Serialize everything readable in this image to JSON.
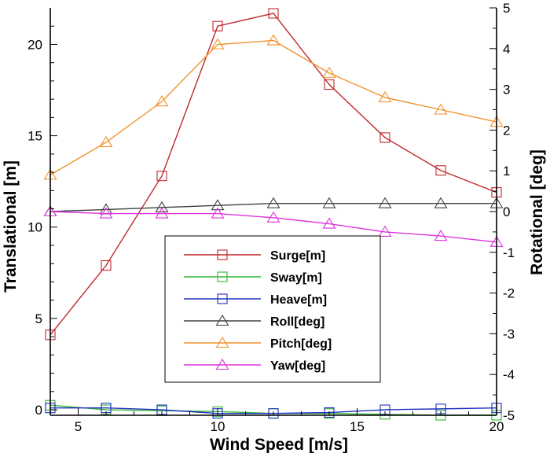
{
  "chart_data": {
    "type": "line",
    "xlabel": "Wind Speed [m/s]",
    "ylabel_left": "Translational [m]",
    "ylabel_right": "Rotational [deg]",
    "xlim": [
      4,
      20
    ],
    "ylim_left": [
      -0.3,
      22
    ],
    "ylim_right": [
      -5,
      5
    ],
    "x_ticks": [
      5,
      10,
      15,
      20
    ],
    "y_left_ticks": [
      0,
      5,
      10,
      15,
      20
    ],
    "y_right_ticks": [
      -5,
      -4,
      -3,
      -2,
      -1,
      0,
      1,
      2,
      3,
      4,
      5
    ],
    "x": [
      4,
      6,
      8,
      10,
      12,
      14,
      16,
      18,
      20
    ],
    "legend_position": "center",
    "series": [
      {
        "name": "Surge[m]",
        "axis": "left",
        "marker": "square",
        "color": "#c0282d",
        "values": [
          4.1,
          7.9,
          12.8,
          21.0,
          21.7,
          17.8,
          14.9,
          13.1,
          11.9
        ]
      },
      {
        "name": "Sway[m]",
        "axis": "left",
        "marker": "square",
        "color": "#2fb52f",
        "values": [
          0.25,
          0.0,
          -0.05,
          -0.1,
          -0.2,
          -0.2,
          -0.25,
          -0.3,
          -0.3
        ]
      },
      {
        "name": "Heave[m]",
        "axis": "left",
        "marker": "square",
        "color": "#2030c0",
        "values": [
          0.1,
          0.1,
          0.0,
          -0.2,
          -0.2,
          -0.15,
          0.0,
          0.05,
          0.1
        ]
      },
      {
        "name": "Roll[deg]",
        "axis": "right",
        "marker": "triangle",
        "color": "#404040",
        "values": [
          0.0,
          0.05,
          0.1,
          0.15,
          0.2,
          0.2,
          0.2,
          0.2,
          0.2
        ]
      },
      {
        "name": "Pitch[deg]",
        "axis": "right",
        "marker": "triangle",
        "color": "#f0922b",
        "values": [
          0.9,
          1.7,
          2.7,
          4.1,
          4.2,
          3.4,
          2.8,
          2.5,
          2.2
        ]
      },
      {
        "name": "Yaw[deg]",
        "axis": "right",
        "marker": "triangle",
        "color": "#dd33dd",
        "values": [
          0.0,
          -0.05,
          -0.05,
          -0.05,
          -0.15,
          -0.3,
          -0.5,
          -0.6,
          -0.75
        ]
      }
    ]
  }
}
